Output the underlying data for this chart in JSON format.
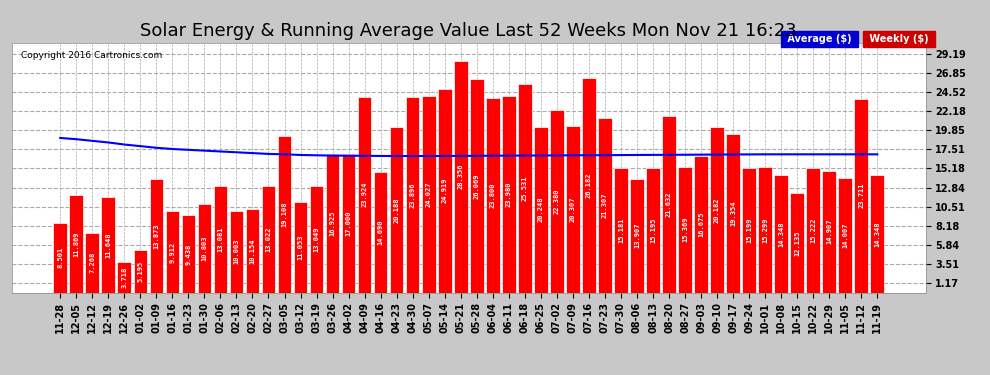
{
  "title": "Solar Energy & Running Average Value Last 52 Weeks Mon Nov 21 16:23",
  "copyright": "Copyright 2016 Cartronics.com",
  "categories": [
    "11-28",
    "12-05",
    "12-12",
    "12-19",
    "12-26",
    "01-02",
    "01-09",
    "01-16",
    "01-23",
    "01-30",
    "02-06",
    "02-13",
    "02-20",
    "02-27",
    "03-05",
    "03-12",
    "03-19",
    "03-26",
    "04-02",
    "04-09",
    "04-16",
    "04-23",
    "04-30",
    "05-07",
    "05-14",
    "05-21",
    "05-28",
    "06-04",
    "06-11",
    "06-18",
    "06-25",
    "07-02",
    "07-09",
    "07-16",
    "07-23",
    "07-30",
    "08-06",
    "08-13",
    "08-20",
    "08-27",
    "09-03",
    "09-10",
    "09-17",
    "09-24",
    "10-01",
    "10-08",
    "10-15",
    "10-22",
    "10-29",
    "11-05",
    "11-12",
    "11-19"
  ],
  "weekly_values": [
    8.501,
    11.869,
    7.268,
    11.648,
    3.718,
    5.195,
    13.873,
    9.912,
    9.438,
    10.803,
    13.081,
    10.003,
    10.154,
    13.022,
    19.108,
    11.053,
    13.049,
    16.925,
    17.0,
    23.924,
    14.69,
    20.188,
    23.896,
    24.027,
    24.919,
    28.356,
    26.069,
    23.8,
    23.98,
    25.531,
    20.248,
    22.38,
    20.307,
    26.182,
    21.307,
    15.181,
    13.907,
    15.195,
    21.632,
    15.369,
    16.675,
    20.182,
    19.354,
    15.199,
    15.299,
    14.348,
    12.135,
    15.222,
    14.907,
    14.007,
    23.711,
    14.348
  ],
  "avg_values": [
    18.9,
    18.75,
    18.55,
    18.35,
    18.1,
    17.9,
    17.7,
    17.55,
    17.45,
    17.35,
    17.25,
    17.15,
    17.05,
    16.95,
    16.9,
    16.82,
    16.78,
    16.75,
    16.73,
    16.72,
    16.7,
    16.69,
    16.69,
    16.69,
    16.7,
    16.71,
    16.72,
    16.73,
    16.74,
    16.75,
    16.76,
    16.77,
    16.78,
    16.79,
    16.8,
    16.81,
    16.82,
    16.83,
    16.84,
    16.85,
    16.86,
    16.87,
    16.88,
    16.89,
    16.9,
    16.9,
    16.9,
    16.9,
    16.9,
    16.9,
    16.9,
    16.9
  ],
  "ytick_labels": [
    "1.17",
    "3.51",
    "5.84",
    "8.18",
    "10.51",
    "12.84",
    "15.18",
    "17.51",
    "19.85",
    "22.18",
    "24.52",
    "26.85",
    "29.19"
  ],
  "ytick_values": [
    1.17,
    3.51,
    5.84,
    8.18,
    10.51,
    12.84,
    15.18,
    17.51,
    19.85,
    22.18,
    24.52,
    26.85,
    29.19
  ],
  "bar_color": "#ff0000",
  "bar_edge_color": "#ffffff",
  "avg_line_color": "#0000ff",
  "fig_bg_color": "#c8c8c8",
  "plot_bg_color": "#ffffff",
  "grid_color": "#aaaaaa",
  "title_fontsize": 13,
  "tick_fontsize": 7,
  "bar_label_fontsize": 5.0,
  "legend_avg_bg": "#0000cc",
  "legend_weekly_bg": "#cc0000",
  "legend_text_color": "#ffffff"
}
